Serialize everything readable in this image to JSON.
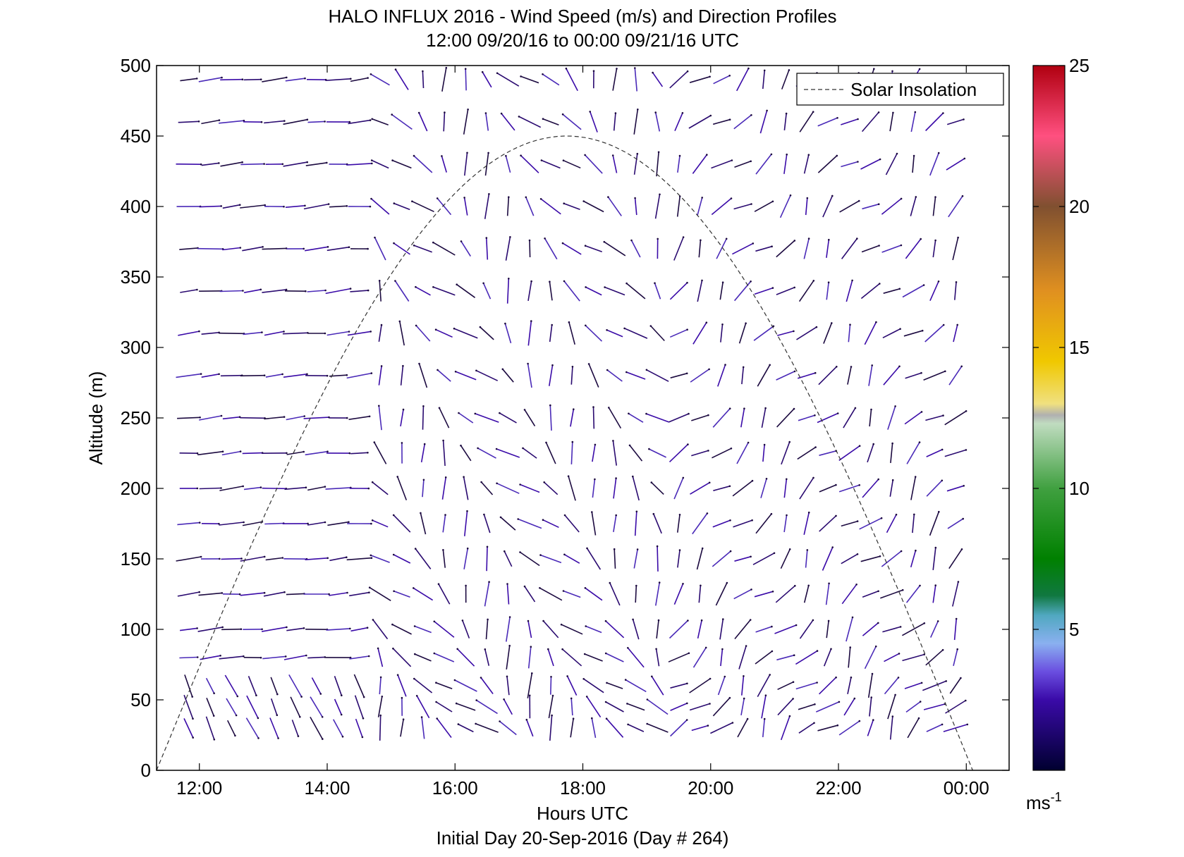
{
  "chart_data": {
    "type": "wind_barb_profile",
    "title": "HALO INFLUX 2016 - Wind Speed (m/s) and Direction Profiles",
    "subtitle": "12:00 09/20/16 to 00:00 09/21/16  UTC",
    "xlabel": "Hours UTC",
    "ylabel": "Altitude (m)",
    "footer": "Initial Day 20-Sep-2016 (Day # 264)",
    "xlim": [
      11.33,
      24.67
    ],
    "ylim": [
      0,
      500
    ],
    "x_ticks": [
      {
        "value": 12,
        "label": "12:00"
      },
      {
        "value": 14,
        "label": "14:00"
      },
      {
        "value": 16,
        "label": "16:00"
      },
      {
        "value": 18,
        "label": "18:00"
      },
      {
        "value": 20,
        "label": "20:00"
      },
      {
        "value": 22,
        "label": "22:00"
      },
      {
        "value": 24,
        "label": "00:00"
      }
    ],
    "y_ticks": [
      0,
      50,
      100,
      150,
      200,
      250,
      300,
      350,
      400,
      450,
      500
    ],
    "legend": {
      "label": "Solar Insolation",
      "position": "top-right",
      "style": "dashed"
    },
    "solar_insolation": {
      "rise_hour": 11.33,
      "peak_hour": 17.75,
      "set_hour": 24.1,
      "peak_altitude_equiv": 450
    },
    "colorbar": {
      "min": 0,
      "max": 25,
      "ticks": [
        5,
        10,
        15,
        20,
        25
      ],
      "unit_label": "ms",
      "unit_exp": "-1",
      "stops": [
        {
          "v": 0,
          "color": "#000030"
        },
        {
          "v": 2.5,
          "color": "#3a0aa8"
        },
        {
          "v": 3.5,
          "color": "#6a4ee0"
        },
        {
          "v": 4.5,
          "color": "#8ab0f0"
        },
        {
          "v": 5.5,
          "color": "#50a8c0"
        },
        {
          "v": 6.2,
          "color": "#107840"
        },
        {
          "v": 7.5,
          "color": "#008000"
        },
        {
          "v": 10,
          "color": "#40a040"
        },
        {
          "v": 12.3,
          "color": "#c0dcc0"
        },
        {
          "v": 12.6,
          "color": "#b0b0b0"
        },
        {
          "v": 13,
          "color": "#f0e080"
        },
        {
          "v": 14.5,
          "color": "#f0c800"
        },
        {
          "v": 17,
          "color": "#e09020"
        },
        {
          "v": 20,
          "color": "#805030"
        },
        {
          "v": 22.5,
          "color": "#ff5080"
        },
        {
          "v": 25,
          "color": "#b00010"
        }
      ]
    },
    "barb_times": [
      11.83,
      12.17,
      12.5,
      12.83,
      13.17,
      13.5,
      13.83,
      14.17,
      14.5,
      14.83,
      15.17,
      15.5,
      15.83,
      16.17,
      16.5,
      16.83,
      17.17,
      17.5,
      17.83,
      18.17,
      18.5,
      18.83,
      19.17,
      19.5,
      19.83,
      20.17,
      20.5,
      20.83,
      21.17,
      21.5,
      21.83,
      22.17,
      22.5,
      22.83,
      23.17,
      23.5,
      23.83
    ],
    "altitudes": [
      30,
      45,
      60,
      80,
      100,
      125,
      150,
      175,
      200,
      225,
      250,
      280,
      310,
      340,
      370,
      400,
      430,
      460,
      490
    ],
    "speed_ms": 2.8
  }
}
